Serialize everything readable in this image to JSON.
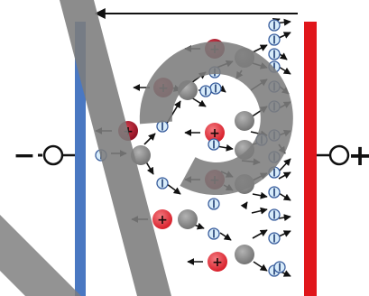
{
  "diagram": {
    "negative_terminal_sign": "−",
    "positive_terminal_sign": "+",
    "cation_label": "+",
    "colors": {
      "cathode": "#4a78c2",
      "anode": "#e0161b",
      "cation_dark": "#b0182b",
      "cation_light": "#e23b44",
      "neutral_atom": "#8f8f8f",
      "electron_fill": "#d8ecfa",
      "electron_stroke": "#3b5f9e",
      "watermark": "#7d7d7d"
    },
    "icons": [
      "electron-icon",
      "cation-icon",
      "neutral-atom-icon",
      "arrow-icon"
    ]
  }
}
